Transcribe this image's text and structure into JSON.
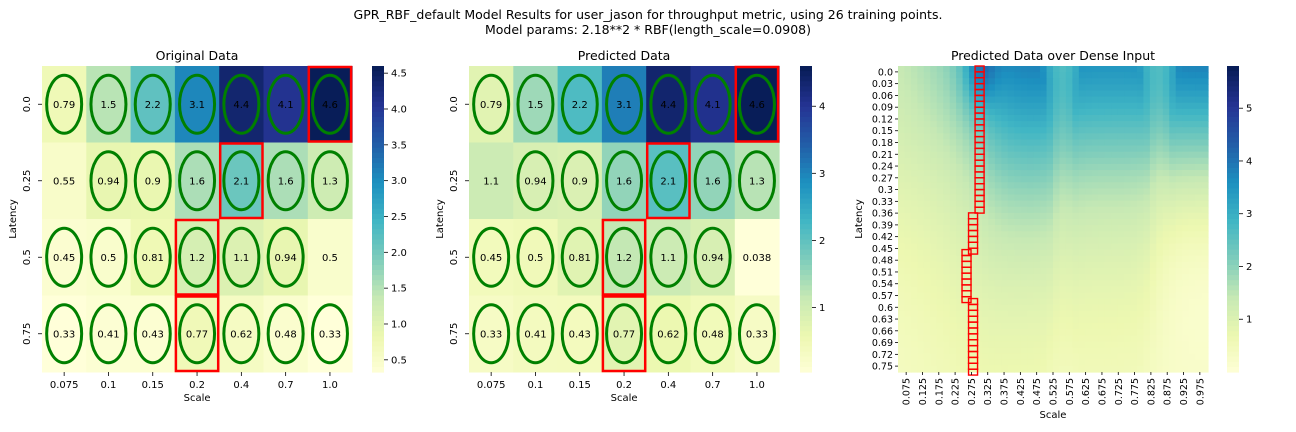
{
  "figure": {
    "title_line1": "GPR_RBF_default Model Results for user_jason for throughput metric, using 26 training points.",
    "title_line2": "Model params: 2.18**2 * RBF(length_scale=0.0908)"
  },
  "chart_data": [
    {
      "type": "heatmap",
      "title": "Original Data",
      "xlabel": "Scale",
      "ylabel": "Latency",
      "x_ticks": [
        "0.075",
        "0.1",
        "0.15",
        "0.2",
        "0.4",
        "0.7",
        "1.0"
      ],
      "y_ticks": [
        "0.0",
        "0.25",
        "0.5",
        "0.75"
      ],
      "values": [
        [
          0.79,
          1.5,
          2.2,
          3.1,
          4.4,
          4.1,
          4.6
        ],
        [
          0.55,
          0.94,
          0.9,
          1.6,
          2.1,
          1.6,
          1.3
        ],
        [
          0.45,
          0.5,
          0.81,
          1.2,
          1.1,
          0.94,
          0.5
        ],
        [
          0.33,
          0.41,
          0.43,
          0.77,
          0.62,
          0.48,
          0.33
        ]
      ],
      "annotations": [
        [
          "0.79",
          "1.5",
          "2.2",
          "3.1",
          "4.4",
          "4.1",
          "4.6"
        ],
        [
          "0.55",
          "0.94",
          "0.9",
          "1.6",
          "2.1",
          "1.6",
          "1.3"
        ],
        [
          "0.45",
          "0.5",
          "0.81",
          "1.2",
          "1.1",
          "0.94",
          "0.5"
        ],
        [
          "0.33",
          "0.41",
          "0.43",
          "0.77",
          "0.62",
          "0.48",
          "0.33"
        ]
      ],
      "training_points": [
        [
          1,
          1,
          1,
          1,
          1,
          1,
          1
        ],
        [
          0,
          1,
          1,
          1,
          1,
          1,
          1
        ],
        [
          1,
          1,
          1,
          1,
          1,
          1,
          0
        ],
        [
          1,
          1,
          1,
          1,
          1,
          1,
          1
        ]
      ],
      "highlighted_cells": [
        [
          0,
          6
        ],
        [
          1,
          4
        ],
        [
          2,
          3
        ],
        [
          3,
          3
        ]
      ],
      "colorbar": {
        "min": 0.33,
        "max": 4.6,
        "ticks": [
          "0.5",
          "1.0",
          "1.5",
          "2.0",
          "2.5",
          "3.0",
          "3.5",
          "4.0",
          "4.5"
        ],
        "tick_values": [
          0.5,
          1.0,
          1.5,
          2.0,
          2.5,
          3.0,
          3.5,
          4.0,
          4.5
        ]
      },
      "colormap": "YlGnBu"
    },
    {
      "type": "heatmap",
      "title": "Predicted Data",
      "xlabel": "Scale",
      "ylabel": "Latency",
      "x_ticks": [
        "0.075",
        "0.1",
        "0.15",
        "0.2",
        "0.4",
        "0.7",
        "1.0"
      ],
      "y_ticks": [
        "0.0",
        "0.25",
        "0.5",
        "0.75"
      ],
      "values": [
        [
          0.79,
          1.5,
          2.2,
          3.1,
          4.4,
          4.1,
          4.6
        ],
        [
          1.1,
          0.94,
          0.9,
          1.6,
          2.1,
          1.6,
          1.3
        ],
        [
          0.45,
          0.5,
          0.81,
          1.2,
          1.1,
          0.94,
          0.038
        ],
        [
          0.33,
          0.41,
          0.43,
          0.77,
          0.62,
          0.48,
          0.33
        ]
      ],
      "annotations": [
        [
          "0.79",
          "1.5",
          "2.2",
          "3.1",
          "4.4",
          "4.1",
          "4.6"
        ],
        [
          "1.1",
          "0.94",
          "0.9",
          "1.6",
          "2.1",
          "1.6",
          "1.3"
        ],
        [
          "0.45",
          "0.5",
          "0.81",
          "1.2",
          "1.1",
          "0.94",
          "0.038"
        ],
        [
          "0.33",
          "0.41",
          "0.43",
          "0.77",
          "0.62",
          "0.48",
          "0.33"
        ]
      ],
      "training_points": [
        [
          1,
          1,
          1,
          1,
          1,
          1,
          1
        ],
        [
          0,
          1,
          1,
          1,
          1,
          1,
          1
        ],
        [
          1,
          1,
          1,
          1,
          1,
          1,
          0
        ],
        [
          1,
          1,
          1,
          1,
          1,
          1,
          1
        ]
      ],
      "highlighted_cells": [
        [
          0,
          6
        ],
        [
          1,
          4
        ],
        [
          2,
          3
        ],
        [
          3,
          3
        ]
      ],
      "colorbar": {
        "min": 0.038,
        "max": 4.6,
        "ticks": [
          "1",
          "2",
          "3",
          "4"
        ],
        "tick_values": [
          1,
          2,
          3,
          4
        ]
      },
      "colormap": "YlGnBu"
    },
    {
      "type": "heatmap",
      "title": "Predicted Data over Dense Input",
      "xlabel": "Scale",
      "ylabel": "Latency",
      "x_ticks": [
        "0.075",
        "0.125",
        "0.175",
        "0.225",
        "0.275",
        "0.325",
        "0.375",
        "0.425",
        "0.475",
        "0.525",
        "0.575",
        "0.625",
        "0.675",
        "0.725",
        "0.775",
        "0.825",
        "0.875",
        "0.925",
        "0.975"
      ],
      "y_ticks": [
        "0.0",
        "0.03",
        "0.06",
        "0.09",
        "0.12",
        "0.15",
        "0.18",
        "0.21",
        "0.24",
        "0.27",
        "0.3",
        "0.33",
        "0.36",
        "0.39",
        "0.42",
        "0.45",
        "0.48",
        "0.51",
        "0.54",
        "0.57",
        "0.6",
        "0.63",
        "0.66",
        "0.69",
        "0.72",
        "0.75"
      ],
      "x_range": [
        0.05,
        1.0
      ],
      "y_range": [
        0.0,
        0.75
      ],
      "value_range": [
        0.0,
        5.8
      ],
      "optimum_path": [
        {
          "latency_from": 0.0,
          "latency_to": 0.36,
          "scale": 0.3
        },
        {
          "latency_from": 0.36,
          "latency_to": 0.45,
          "scale": 0.28
        },
        {
          "latency_from": 0.45,
          "latency_to": 0.57,
          "scale": 0.26
        },
        {
          "latency_from": 0.57,
          "latency_to": 0.75,
          "scale": 0.28
        }
      ],
      "colorbar": {
        "min": 0.0,
        "max": 5.8,
        "ticks": [
          "1",
          "2",
          "3",
          "4",
          "5"
        ],
        "tick_values": [
          1,
          2,
          3,
          4,
          5
        ]
      },
      "colormap": "YlGnBu"
    }
  ]
}
